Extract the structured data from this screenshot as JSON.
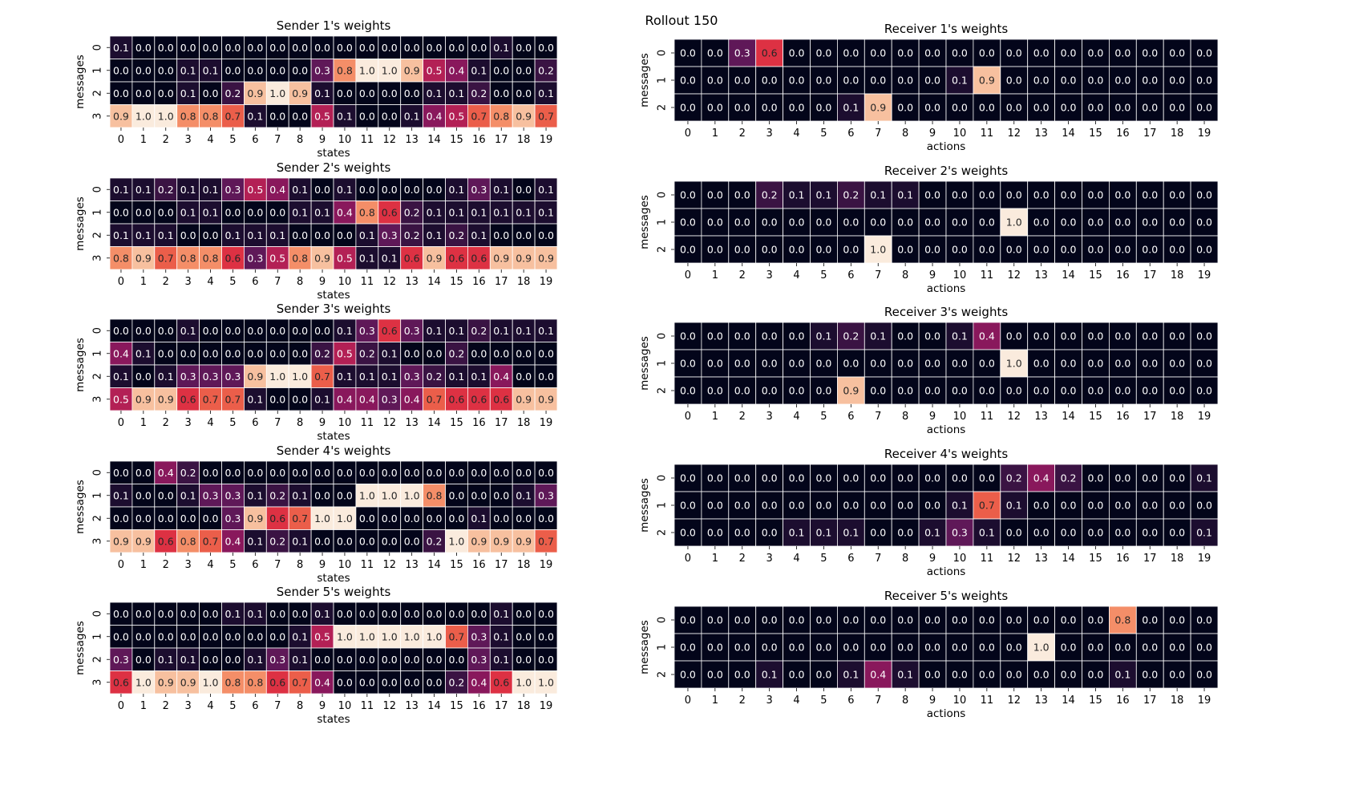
{
  "suptitle": "Rollout 150",
  "chart_data": [
    {
      "type": "heatmap",
      "title": "Sender 1's weights",
      "xlabel": "states",
      "ylabel": "messages",
      "x_ticks": [
        "0",
        "1",
        "2",
        "3",
        "4",
        "5",
        "6",
        "7",
        "8",
        "9",
        "10",
        "11",
        "12",
        "13",
        "14",
        "15",
        "16",
        "17",
        "18",
        "19"
      ],
      "y_ticks": [
        "0",
        "1",
        "2",
        "3"
      ],
      "values": [
        [
          0.1,
          0.0,
          0.0,
          0.0,
          0.0,
          0.0,
          0.0,
          0.0,
          0.0,
          0.0,
          0.0,
          0.0,
          0.0,
          0.0,
          0.0,
          0.0,
          0.0,
          0.1,
          0.0,
          0.0
        ],
        [
          0.0,
          0.0,
          0.0,
          0.1,
          0.1,
          0.0,
          0.0,
          0.0,
          0.0,
          0.3,
          0.8,
          1.0,
          1.0,
          0.9,
          0.5,
          0.4,
          0.1,
          0.0,
          0.0,
          0.2
        ],
        [
          0.0,
          0.0,
          0.0,
          0.1,
          0.0,
          0.2,
          0.9,
          1.0,
          0.9,
          0.1,
          0.0,
          0.0,
          0.0,
          0.0,
          0.1,
          0.1,
          0.2,
          0.0,
          0.0,
          0.1
        ],
        [
          0.9,
          1.0,
          1.0,
          0.8,
          0.8,
          0.7,
          0.1,
          0.0,
          0.0,
          0.5,
          0.1,
          0.0,
          0.0,
          0.1,
          0.4,
          0.5,
          0.7,
          0.8,
          0.9,
          0.7
        ]
      ]
    },
    {
      "type": "heatmap",
      "title": "Sender 2's weights",
      "xlabel": "states",
      "ylabel": "messages",
      "x_ticks": [
        "0",
        "1",
        "2",
        "3",
        "4",
        "5",
        "6",
        "7",
        "8",
        "9",
        "10",
        "11",
        "12",
        "13",
        "14",
        "15",
        "16",
        "17",
        "18",
        "19"
      ],
      "y_ticks": [
        "0",
        "1",
        "2",
        "3"
      ],
      "values": [
        [
          0.1,
          0.1,
          0.2,
          0.1,
          0.1,
          0.3,
          0.5,
          0.4,
          0.1,
          0.0,
          0.1,
          0.0,
          0.0,
          0.0,
          0.0,
          0.1,
          0.3,
          0.1,
          0.0,
          0.1
        ],
        [
          0.0,
          0.0,
          0.0,
          0.1,
          0.1,
          0.0,
          0.0,
          0.0,
          0.1,
          0.1,
          0.4,
          0.8,
          0.6,
          0.2,
          0.1,
          0.1,
          0.1,
          0.1,
          0.1,
          0.1
        ],
        [
          0.1,
          0.1,
          0.1,
          0.0,
          0.0,
          0.1,
          0.1,
          0.1,
          0.0,
          0.0,
          0.0,
          0.1,
          0.3,
          0.2,
          0.1,
          0.2,
          0.1,
          0.0,
          0.0,
          0.0
        ],
        [
          0.8,
          0.9,
          0.7,
          0.8,
          0.8,
          0.6,
          0.3,
          0.5,
          0.8,
          0.9,
          0.5,
          0.1,
          0.1,
          0.6,
          0.9,
          0.6,
          0.6,
          0.9,
          0.9,
          0.9
        ]
      ]
    },
    {
      "type": "heatmap",
      "title": "Sender 3's weights",
      "xlabel": "states",
      "ylabel": "messages",
      "x_ticks": [
        "0",
        "1",
        "2",
        "3",
        "4",
        "5",
        "6",
        "7",
        "8",
        "9",
        "10",
        "11",
        "12",
        "13",
        "14",
        "15",
        "16",
        "17",
        "18",
        "19"
      ],
      "y_ticks": [
        "0",
        "1",
        "2",
        "3"
      ],
      "values": [
        [
          0.0,
          0.0,
          0.0,
          0.1,
          0.0,
          0.0,
          0.0,
          0.0,
          0.0,
          0.0,
          0.1,
          0.3,
          0.6,
          0.3,
          0.1,
          0.1,
          0.2,
          0.1,
          0.1,
          0.1
        ],
        [
          0.4,
          0.1,
          0.0,
          0.0,
          0.0,
          0.0,
          0.0,
          0.0,
          0.0,
          0.2,
          0.5,
          0.2,
          0.1,
          0.0,
          0.0,
          0.2,
          0.0,
          0.0,
          0.0,
          0.0
        ],
        [
          0.1,
          0.0,
          0.1,
          0.3,
          0.3,
          0.3,
          0.9,
          1.0,
          1.0,
          0.7,
          0.1,
          0.1,
          0.1,
          0.3,
          0.2,
          0.1,
          0.1,
          0.4,
          0.0,
          0.0
        ],
        [
          0.5,
          0.9,
          0.9,
          0.6,
          0.7,
          0.7,
          0.1,
          0.0,
          0.0,
          0.1,
          0.4,
          0.4,
          0.3,
          0.4,
          0.7,
          0.6,
          0.6,
          0.6,
          0.9,
          0.9
        ]
      ]
    },
    {
      "type": "heatmap",
      "title": "Sender 4's weights",
      "xlabel": "states",
      "ylabel": "messages",
      "x_ticks": [
        "0",
        "1",
        "2",
        "3",
        "4",
        "5",
        "6",
        "7",
        "8",
        "9",
        "10",
        "11",
        "12",
        "13",
        "14",
        "15",
        "16",
        "17",
        "18",
        "19"
      ],
      "y_ticks": [
        "0",
        "1",
        "2",
        "3"
      ],
      "values": [
        [
          0.0,
          0.0,
          0.4,
          0.2,
          0.0,
          0.0,
          0.0,
          0.0,
          0.0,
          0.0,
          0.0,
          0.0,
          0.0,
          0.0,
          0.0,
          0.0,
          0.0,
          0.0,
          0.0,
          0.0
        ],
        [
          0.1,
          0.0,
          0.0,
          0.1,
          0.3,
          0.3,
          0.1,
          0.2,
          0.1,
          0.0,
          0.0,
          1.0,
          1.0,
          1.0,
          0.8,
          0.0,
          0.0,
          0.0,
          0.1,
          0.3
        ],
        [
          0.0,
          0.0,
          0.0,
          0.0,
          0.0,
          0.3,
          0.9,
          0.6,
          0.7,
          1.0,
          1.0,
          0.0,
          0.0,
          0.0,
          0.0,
          0.0,
          0.1,
          0.0,
          0.0,
          0.0
        ],
        [
          0.9,
          0.9,
          0.6,
          0.8,
          0.7,
          0.4,
          0.1,
          0.2,
          0.1,
          0.0,
          0.0,
          0.0,
          0.0,
          0.0,
          0.2,
          1.0,
          0.9,
          0.9,
          0.9,
          0.7
        ]
      ]
    },
    {
      "type": "heatmap",
      "title": "Sender 5's weights",
      "xlabel": "states",
      "ylabel": "messages",
      "x_ticks": [
        "0",
        "1",
        "2",
        "3",
        "4",
        "5",
        "6",
        "7",
        "8",
        "9",
        "10",
        "11",
        "12",
        "13",
        "14",
        "15",
        "16",
        "17",
        "18",
        "19"
      ],
      "y_ticks": [
        "0",
        "1",
        "2",
        "3"
      ],
      "values": [
        [
          0.0,
          0.0,
          0.0,
          0.0,
          0.0,
          0.1,
          0.1,
          0.0,
          0.0,
          0.1,
          0.0,
          0.0,
          0.0,
          0.0,
          0.0,
          0.0,
          0.0,
          0.1,
          0.0,
          0.0
        ],
        [
          0.0,
          0.0,
          0.0,
          0.0,
          0.0,
          0.0,
          0.0,
          0.0,
          0.1,
          0.5,
          1.0,
          1.0,
          1.0,
          1.0,
          1.0,
          0.7,
          0.3,
          0.1,
          0.0,
          0.0
        ],
        [
          0.3,
          0.0,
          0.1,
          0.1,
          0.0,
          0.0,
          0.1,
          0.3,
          0.1,
          0.0,
          0.0,
          0.0,
          0.0,
          0.0,
          0.0,
          0.0,
          0.3,
          0.1,
          0.0,
          0.0
        ],
        [
          0.6,
          1.0,
          0.9,
          0.9,
          1.0,
          0.8,
          0.8,
          0.6,
          0.7,
          0.4,
          0.0,
          0.0,
          0.0,
          0.0,
          0.0,
          0.2,
          0.4,
          0.6,
          1.0,
          1.0
        ]
      ]
    },
    {
      "type": "heatmap",
      "title": "Receiver 1's weights",
      "xlabel": "actions",
      "ylabel": "messages",
      "x_ticks": [
        "0",
        "1",
        "2",
        "3",
        "4",
        "5",
        "6",
        "7",
        "8",
        "9",
        "10",
        "11",
        "12",
        "13",
        "14",
        "15",
        "16",
        "17",
        "18",
        "19"
      ],
      "y_ticks": [
        "0",
        "1",
        "2"
      ],
      "values": [
        [
          0.0,
          0.0,
          0.3,
          0.6,
          0.0,
          0.0,
          0.0,
          0.0,
          0.0,
          0.0,
          0.0,
          0.0,
          0.0,
          0.0,
          0.0,
          0.0,
          0.0,
          0.0,
          0.0,
          0.0
        ],
        [
          0.0,
          0.0,
          0.0,
          0.0,
          0.0,
          0.0,
          0.0,
          0.0,
          0.0,
          0.0,
          0.1,
          0.9,
          0.0,
          0.0,
          0.0,
          0.0,
          0.0,
          0.0,
          0.0,
          0.0
        ],
        [
          0.0,
          0.0,
          0.0,
          0.0,
          0.0,
          0.0,
          0.1,
          0.9,
          0.0,
          0.0,
          0.0,
          0.0,
          0.0,
          0.0,
          0.0,
          0.0,
          0.0,
          0.0,
          0.0,
          0.0
        ]
      ]
    },
    {
      "type": "heatmap",
      "title": "Receiver 2's weights",
      "xlabel": "actions",
      "ylabel": "messages",
      "x_ticks": [
        "0",
        "1",
        "2",
        "3",
        "4",
        "5",
        "6",
        "7",
        "8",
        "9",
        "10",
        "11",
        "12",
        "13",
        "14",
        "15",
        "16",
        "17",
        "18",
        "19"
      ],
      "y_ticks": [
        "0",
        "1",
        "2"
      ],
      "values": [
        [
          0.0,
          0.0,
          0.0,
          0.2,
          0.1,
          0.1,
          0.2,
          0.1,
          0.1,
          0.0,
          0.0,
          0.0,
          0.0,
          0.0,
          0.0,
          0.0,
          0.0,
          0.0,
          0.0,
          0.0
        ],
        [
          0.0,
          0.0,
          0.0,
          0.0,
          0.0,
          0.0,
          0.0,
          0.0,
          0.0,
          0.0,
          0.0,
          0.0,
          1.0,
          0.0,
          0.0,
          0.0,
          0.0,
          0.0,
          0.0,
          0.0
        ],
        [
          0.0,
          0.0,
          0.0,
          0.0,
          0.0,
          0.0,
          0.0,
          1.0,
          0.0,
          0.0,
          0.0,
          0.0,
          0.0,
          0.0,
          0.0,
          0.0,
          0.0,
          0.0,
          0.0,
          0.0
        ]
      ]
    },
    {
      "type": "heatmap",
      "title": "Receiver 3's weights",
      "xlabel": "actions",
      "ylabel": "messages",
      "x_ticks": [
        "0",
        "1",
        "2",
        "3",
        "4",
        "5",
        "6",
        "7",
        "8",
        "9",
        "10",
        "11",
        "12",
        "13",
        "14",
        "15",
        "16",
        "17",
        "18",
        "19"
      ],
      "y_ticks": [
        "0",
        "1",
        "2"
      ],
      "values": [
        [
          0.0,
          0.0,
          0.0,
          0.0,
          0.0,
          0.1,
          0.2,
          0.1,
          0.0,
          0.0,
          0.1,
          0.4,
          0.0,
          0.0,
          0.0,
          0.0,
          0.0,
          0.0,
          0.0,
          0.0
        ],
        [
          0.0,
          0.0,
          0.0,
          0.0,
          0.0,
          0.0,
          0.0,
          0.0,
          0.0,
          0.0,
          0.0,
          0.0,
          1.0,
          0.0,
          0.0,
          0.0,
          0.0,
          0.0,
          0.0,
          0.0
        ],
        [
          0.0,
          0.0,
          0.0,
          0.0,
          0.0,
          0.0,
          0.9,
          0.0,
          0.0,
          0.0,
          0.0,
          0.0,
          0.0,
          0.0,
          0.0,
          0.0,
          0.0,
          0.0,
          0.0,
          0.0
        ]
      ]
    },
    {
      "type": "heatmap",
      "title": "Receiver 4's weights",
      "xlabel": "actions",
      "ylabel": "messages",
      "x_ticks": [
        "0",
        "1",
        "2",
        "3",
        "4",
        "5",
        "6",
        "7",
        "8",
        "9",
        "10",
        "11",
        "12",
        "13",
        "14",
        "15",
        "16",
        "17",
        "18",
        "19"
      ],
      "y_ticks": [
        "0",
        "1",
        "2"
      ],
      "values": [
        [
          0.0,
          0.0,
          0.0,
          0.0,
          0.0,
          0.0,
          0.0,
          0.0,
          0.0,
          0.0,
          0.0,
          0.0,
          0.2,
          0.4,
          0.2,
          0.0,
          0.0,
          0.0,
          0.0,
          0.1
        ],
        [
          0.0,
          0.0,
          0.0,
          0.0,
          0.0,
          0.0,
          0.0,
          0.0,
          0.0,
          0.0,
          0.1,
          0.7,
          0.1,
          0.0,
          0.0,
          0.0,
          0.0,
          0.0,
          0.0,
          0.0
        ],
        [
          0.0,
          0.0,
          0.0,
          0.0,
          0.1,
          0.1,
          0.1,
          0.0,
          0.0,
          0.1,
          0.3,
          0.1,
          0.0,
          0.0,
          0.0,
          0.0,
          0.0,
          0.0,
          0.0,
          0.1
        ]
      ]
    },
    {
      "type": "heatmap",
      "title": "Receiver 5's weights",
      "xlabel": "actions",
      "ylabel": "messages",
      "x_ticks": [
        "0",
        "1",
        "2",
        "3",
        "4",
        "5",
        "6",
        "7",
        "8",
        "9",
        "10",
        "11",
        "12",
        "13",
        "14",
        "15",
        "16",
        "17",
        "18",
        "19"
      ],
      "y_ticks": [
        "0",
        "1",
        "2"
      ],
      "values": [
        [
          0.0,
          0.0,
          0.0,
          0.0,
          0.0,
          0.0,
          0.0,
          0.0,
          0.0,
          0.0,
          0.0,
          0.0,
          0.0,
          0.0,
          0.0,
          0.0,
          0.8,
          0.0,
          0.0,
          0.0
        ],
        [
          0.0,
          0.0,
          0.0,
          0.0,
          0.0,
          0.0,
          0.0,
          0.0,
          0.0,
          0.0,
          0.0,
          0.0,
          0.0,
          1.0,
          0.0,
          0.0,
          0.0,
          0.0,
          0.0,
          0.0
        ],
        [
          0.0,
          0.0,
          0.0,
          0.1,
          0.0,
          0.0,
          0.1,
          0.4,
          0.1,
          0.0,
          0.0,
          0.0,
          0.0,
          0.0,
          0.0,
          0.0,
          0.1,
          0.0,
          0.0,
          0.0
        ]
      ]
    }
  ]
}
